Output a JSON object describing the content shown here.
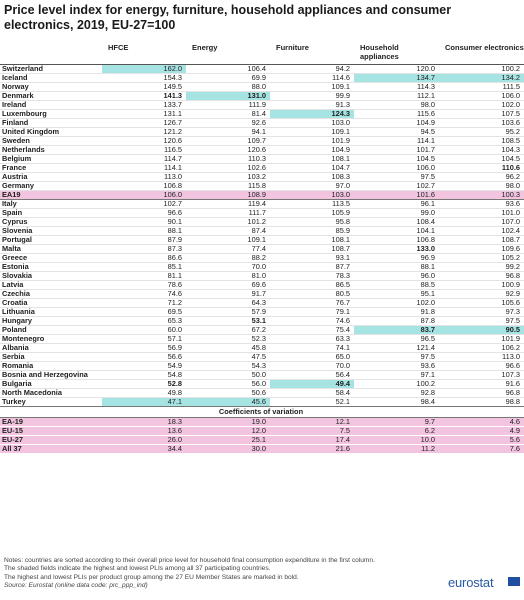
{
  "title": "Price level index for energy, furniture, household appliances and consumer electronics, 2019, EU-27=100",
  "headers": [
    "",
    "HFCE",
    "Energy",
    "Furniture",
    "Household appliances",
    "Consumer electronics"
  ],
  "rows": [
    {
      "c": "Switzerland",
      "v": [
        "162.0",
        "106.4",
        "94.2",
        "120.0",
        "100.2"
      ],
      "hl": [
        0
      ]
    },
    {
      "c": "Iceland",
      "v": [
        "154.3",
        "69.9",
        "114.6",
        "134.7",
        "134.2"
      ],
      "hl": [
        3,
        4
      ]
    },
    {
      "c": "Norway",
      "v": [
        "149.5",
        "88.0",
        "109.1",
        "114.3",
        "111.5"
      ]
    },
    {
      "c": "Denmark",
      "v": [
        "141.3",
        "131.0",
        "99.9",
        "112.1",
        "106.0"
      ],
      "hl": [
        1
      ],
      "b": [
        0,
        1
      ]
    },
    {
      "c": "Ireland",
      "v": [
        "133.7",
        "111.9",
        "91.3",
        "98.0",
        "102.0"
      ]
    },
    {
      "c": "Luxembourg",
      "v": [
        "131.1",
        "81.4",
        "124.3",
        "115.6",
        "107.5"
      ],
      "hl": [
        2
      ],
      "b": [
        2
      ]
    },
    {
      "c": "Finland",
      "v": [
        "126.7",
        "92.6",
        "103.0",
        "104.9",
        "103.6"
      ]
    },
    {
      "c": "United Kingdom",
      "v": [
        "121.2",
        "94.1",
        "109.1",
        "94.5",
        "95.2"
      ]
    },
    {
      "c": "Sweden",
      "v": [
        "120.6",
        "109.7",
        "101.9",
        "114.1",
        "108.5"
      ]
    },
    {
      "c": "Netherlands",
      "v": [
        "116.5",
        "120.6",
        "104.9",
        "101.7",
        "104.3"
      ]
    },
    {
      "c": "Belgium",
      "v": [
        "114.7",
        "110.3",
        "108.1",
        "104.5",
        "104.5"
      ]
    },
    {
      "c": "France",
      "v": [
        "114.1",
        "102.6",
        "104.7",
        "106.0",
        "110.6"
      ],
      "b": [
        4
      ]
    },
    {
      "c": "Austria",
      "v": [
        "113.0",
        "103.2",
        "108.3",
        "97.5",
        "96.2"
      ]
    },
    {
      "c": "Germany",
      "v": [
        "106.8",
        "115.8",
        "97.0",
        "102.7",
        "98.0"
      ]
    },
    {
      "c": "EA19",
      "v": [
        "106.0",
        "108.9",
        "103.0",
        "101.6",
        "100.3"
      ],
      "ea": true
    },
    {
      "c": "Italy",
      "v": [
        "102.7",
        "119.4",
        "113.5",
        "96.1",
        "93.6"
      ]
    },
    {
      "c": "Spain",
      "v": [
        "96.6",
        "111.7",
        "105.9",
        "99.0",
        "101.0"
      ]
    },
    {
      "c": "Cyprus",
      "v": [
        "90.1",
        "101.2",
        "95.8",
        "108.4",
        "107.0"
      ]
    },
    {
      "c": "Slovenia",
      "v": [
        "88.1",
        "87.4",
        "85.9",
        "104.1",
        "102.4"
      ]
    },
    {
      "c": "Portugal",
      "v": [
        "87.9",
        "109.1",
        "108.1",
        "106.8",
        "108.7"
      ]
    },
    {
      "c": "Malta",
      "v": [
        "87.3",
        "77.4",
        "108.7",
        "133.0",
        "109.6"
      ],
      "b": [
        3
      ]
    },
    {
      "c": "Greece",
      "v": [
        "86.6",
        "88.2",
        "93.1",
        "96.9",
        "105.2"
      ]
    },
    {
      "c": "Estonia",
      "v": [
        "85.1",
        "70.0",
        "87.7",
        "88.1",
        "99.2"
      ]
    },
    {
      "c": "Slovakia",
      "v": [
        "81.1",
        "81.0",
        "78.3",
        "96.0",
        "96.8"
      ]
    },
    {
      "c": "Latvia",
      "v": [
        "78.6",
        "69.6",
        "86.5",
        "88.5",
        "100.9"
      ]
    },
    {
      "c": "Czechia",
      "v": [
        "74.6",
        "91.7",
        "80.5",
        "95.1",
        "92.9"
      ]
    },
    {
      "c": "Croatia",
      "v": [
        "71.2",
        "64.3",
        "76.7",
        "102.0",
        "105.6"
      ]
    },
    {
      "c": "Lithuania",
      "v": [
        "69.5",
        "57.9",
        "79.1",
        "91.8",
        "97.3"
      ]
    },
    {
      "c": "Hungary",
      "v": [
        "65.3",
        "53.1",
        "74.6",
        "87.8",
        "97.5"
      ],
      "b": [
        1
      ]
    },
    {
      "c": "Poland",
      "v": [
        "60.0",
        "67.2",
        "75.4",
        "83.7",
        "90.5"
      ],
      "hl": [
        3,
        4
      ],
      "b": [
        3,
        4
      ]
    },
    {
      "c": "Montenegro",
      "v": [
        "57.1",
        "52.3",
        "63.3",
        "96.5",
        "101.9"
      ]
    },
    {
      "c": "Albania",
      "v": [
        "56.9",
        "45.8",
        "74.1",
        "121.4",
        "106.2"
      ]
    },
    {
      "c": "Serbia",
      "v": [
        "56.6",
        "47.5",
        "65.0",
        "97.5",
        "113.0"
      ]
    },
    {
      "c": "Romania",
      "v": [
        "54.9",
        "54.3",
        "70.0",
        "93.6",
        "96.6"
      ]
    },
    {
      "c": "Bosnia and Herzegovina",
      "v": [
        "54.8",
        "50.0",
        "56.4",
        "97.1",
        "107.3"
      ]
    },
    {
      "c": "Bulgaria",
      "v": [
        "52.8",
        "56.0",
        "49.4",
        "100.2",
        "91.6"
      ],
      "hl": [
        2
      ],
      "b": [
        0,
        2
      ]
    },
    {
      "c": "North Macedonia",
      "v": [
        "49.8",
        "50.6",
        "58.4",
        "92.8",
        "96.8"
      ]
    },
    {
      "c": "Turkey",
      "v": [
        "47.1",
        "45.6",
        "52.1",
        "98.4",
        "98.8"
      ],
      "hl": [
        0,
        1
      ],
      "turkey": true
    }
  ],
  "cv_header": "Coefficients of variation",
  "cv_rows": [
    {
      "c": "EA-19",
      "v": [
        "18.3",
        "19.0",
        "12.1",
        "9.7",
        "4.6"
      ]
    },
    {
      "c": "EU-15",
      "v": [
        "13.6",
        "12.0",
        "7.5",
        "6.2",
        "4.9"
      ]
    },
    {
      "c": "EU-27",
      "v": [
        "26.0",
        "25.1",
        "17.4",
        "10.0",
        "5.6"
      ]
    },
    {
      "c": "All 37",
      "v": [
        "34.4",
        "30.0",
        "21.6",
        "11.2",
        "7.6"
      ]
    }
  ],
  "notes": [
    "Notes: countries are sorted according to their overall price level for household final consumption expenditure in the first column.",
    "The shaded fields indicate the highest and lowest PLIs among all 37 participating countries.",
    "The highest and lowest PLIs per product group among the 27 EU Member States are marked in bold."
  ],
  "source": "Source: Eurostat (online data code: prc_ppp_ind)",
  "logo": "eurostat",
  "colors": {
    "highlight": "#a6e3e3",
    "aggregate": "#f2c4e0",
    "logo": "#2a5aa6"
  }
}
